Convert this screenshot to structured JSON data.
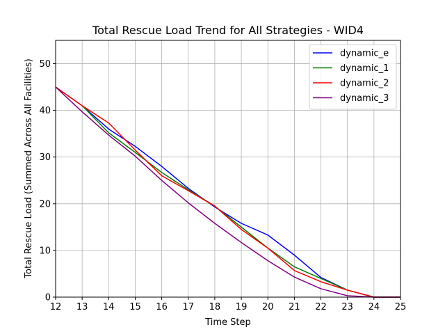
{
  "chart_data": {
    "type": "line",
    "title": "Total Rescue Load Trend for All Strategies - WID4",
    "xlabel": "Time Step",
    "ylabel": "Total Rescue Load (Summed Across All Facilities)",
    "xlim": [
      12,
      25
    ],
    "ylim": [
      0,
      55
    ],
    "xticks": [
      12,
      13,
      14,
      15,
      16,
      17,
      18,
      19,
      20,
      21,
      22,
      23,
      24,
      25
    ],
    "yticks": [
      0,
      10,
      20,
      30,
      40,
      50
    ],
    "grid": true,
    "legend_position": "top-right",
    "x": [
      12,
      13,
      14,
      15,
      16,
      17,
      18,
      19,
      20,
      21,
      22,
      23,
      24,
      25
    ],
    "series": [
      {
        "name": "dynamic_e",
        "color": "#0000ff",
        "values": [
          45,
          41,
          36,
          32.3,
          28,
          23.3,
          19.3,
          15.8,
          13.3,
          9,
          4.2,
          1.5,
          0,
          0
        ]
      },
      {
        "name": "dynamic_1",
        "color": "#008000",
        "values": [
          45,
          41,
          35.2,
          31,
          26.7,
          23,
          19.5,
          15,
          10.5,
          6.5,
          4,
          1.5,
          0,
          0
        ]
      },
      {
        "name": "dynamic_2",
        "color": "#ff0000",
        "values": [
          45,
          41,
          37.3,
          31.5,
          26,
          22.8,
          19.5,
          14.5,
          10.5,
          5.7,
          3.3,
          1.5,
          0,
          0
        ]
      },
      {
        "name": "dynamic_3",
        "color": "#800080",
        "values": [
          45,
          39.7,
          34.7,
          30.2,
          25,
          20.2,
          15.8,
          11.7,
          7.8,
          4.3,
          1.8,
          0.3,
          0,
          0
        ]
      }
    ]
  }
}
